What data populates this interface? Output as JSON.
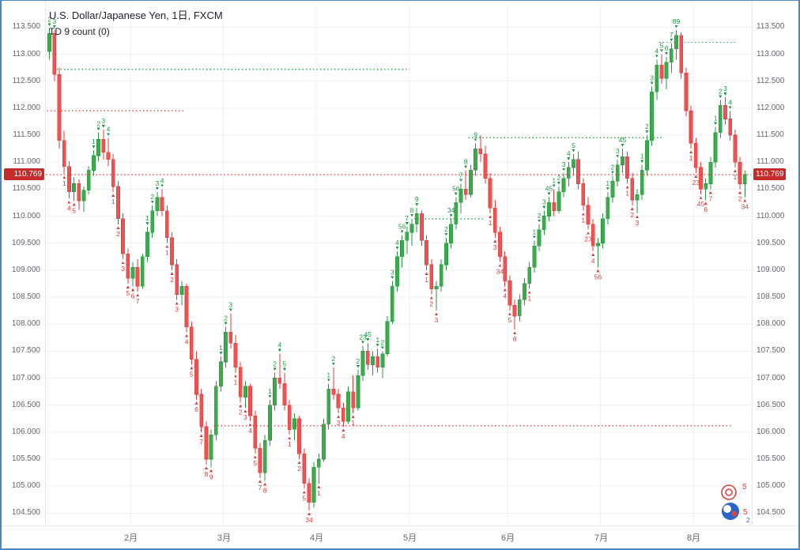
{
  "header": {
    "symbol_title": "U.S. Dollar/Japanese Yen, 1日, FXCM",
    "indicator_label": "TD 9 count (0)"
  },
  "price_line": {
    "value": 110.769,
    "label": "110.769"
  },
  "axes": {
    "price_min": 104.5,
    "price_max": 113.5,
    "price_step": 0.5,
    "decimals": 3
  },
  "colors": {
    "up": "#3cab4e",
    "up_dark": "#2c9440",
    "down": "#ee5253",
    "down_dark": "#df3d3e",
    "grid": "#edf0f6",
    "axis_text": "#62666f",
    "tdst_green": "#2eb24f",
    "tdst_red": "#e35555",
    "mark_up": "#1a9a40",
    "mark_down": "#df3a3a",
    "price_line": "#dd3636",
    "badge_bg": "#c42b2b"
  },
  "logo": {
    "marks": [
      "5",
      "5",
      "2"
    ]
  },
  "chart_data": {
    "type": "candlestick",
    "title": "U.S. Dollar/Japanese Yen, 1日, FXCM",
    "indicator": "TD 9 count (0)",
    "ylim": [
      104.3,
      113.9
    ],
    "price_axis": {
      "min": 104.5,
      "max": 113.5,
      "step": 0.5
    },
    "months": [
      {
        "label": "2月",
        "index": 17
      },
      {
        "label": "3月",
        "index": 36
      },
      {
        "label": "4月",
        "index": 55
      },
      {
        "label": "5月",
        "index": 74
      },
      {
        "label": "6月",
        "index": 94
      },
      {
        "label": "7月",
        "index": 113
      },
      {
        "label": "8月",
        "index": 132
      }
    ],
    "ohlc": [
      [
        113.05,
        113.48,
        112.9,
        113.38
      ],
      [
        113.38,
        113.45,
        112.5,
        112.62
      ],
      [
        112.62,
        112.75,
        111.25,
        111.4
      ],
      [
        111.4,
        111.58,
        110.78,
        110.92
      ],
      [
        110.92,
        111.02,
        110.32,
        110.45
      ],
      [
        110.45,
        110.72,
        110.28,
        110.6
      ],
      [
        110.6,
        110.68,
        110.12,
        110.28
      ],
      [
        110.28,
        110.55,
        110.08,
        110.48
      ],
      [
        110.48,
        110.92,
        110.4,
        110.85
      ],
      [
        110.85,
        111.22,
        110.75,
        111.12
      ],
      [
        111.12,
        111.55,
        111.02,
        111.42
      ],
      [
        111.42,
        111.6,
        111.05,
        111.18
      ],
      [
        111.18,
        111.45,
        110.92,
        111.05
      ],
      [
        111.05,
        111.15,
        110.45,
        110.55
      ],
      [
        110.55,
        110.65,
        109.85,
        109.95
      ],
      [
        109.95,
        110.05,
        109.2,
        109.3
      ],
      [
        109.3,
        109.4,
        108.75,
        108.85
      ],
      [
        108.85,
        109.15,
        108.7,
        109.05
      ],
      [
        109.05,
        109.2,
        108.6,
        108.7
      ],
      [
        108.7,
        109.3,
        108.65,
        109.25
      ],
      [
        109.25,
        109.8,
        109.15,
        109.7
      ],
      [
        109.7,
        110.2,
        109.6,
        110.1
      ],
      [
        110.1,
        110.45,
        110.0,
        110.35
      ],
      [
        110.35,
        110.5,
        110.0,
        110.1
      ],
      [
        110.1,
        110.2,
        109.5,
        109.6
      ],
      [
        109.6,
        109.7,
        109.0,
        109.1
      ],
      [
        109.1,
        109.2,
        108.45,
        108.55
      ],
      [
        108.55,
        108.8,
        108.35,
        108.7
      ],
      [
        108.7,
        108.75,
        107.85,
        107.95
      ],
      [
        107.95,
        108.05,
        107.25,
        107.35
      ],
      [
        107.35,
        107.5,
        106.6,
        106.7
      ],
      [
        106.7,
        106.8,
        106.0,
        106.1
      ],
      [
        106.1,
        106.2,
        105.4,
        105.5
      ],
      [
        105.5,
        106.05,
        105.35,
        105.95
      ],
      [
        105.95,
        106.95,
        105.85,
        106.85
      ],
      [
        106.85,
        107.4,
        106.75,
        107.3
      ],
      [
        107.3,
        107.95,
        107.2,
        107.85
      ],
      [
        107.85,
        108.2,
        107.55,
        107.65
      ],
      [
        107.65,
        107.8,
        107.1,
        107.2
      ],
      [
        107.2,
        107.3,
        106.55,
        106.65
      ],
      [
        106.65,
        106.95,
        106.45,
        106.85
      ],
      [
        106.85,
        106.9,
        106.2,
        106.3
      ],
      [
        106.3,
        106.4,
        105.6,
        105.7
      ],
      [
        105.7,
        105.8,
        105.15,
        105.25
      ],
      [
        105.25,
        105.95,
        105.1,
        105.85
      ],
      [
        105.85,
        106.6,
        105.75,
        106.5
      ],
      [
        106.5,
        107.1,
        106.4,
        107.0
      ],
      [
        107.0,
        107.45,
        106.8,
        106.9
      ],
      [
        106.9,
        107.1,
        106.4,
        106.5
      ],
      [
        106.5,
        106.6,
        105.95,
        106.05
      ],
      [
        106.05,
        106.35,
        105.85,
        106.25
      ],
      [
        106.25,
        106.3,
        105.5,
        105.6
      ],
      [
        105.6,
        105.7,
        104.95,
        105.05
      ],
      [
        105.05,
        105.15,
        104.55,
        104.7
      ],
      [
        104.7,
        105.45,
        104.6,
        105.35
      ],
      [
        105.35,
        105.6,
        105.05,
        105.5
      ],
      [
        105.5,
        106.25,
        105.45,
        106.15
      ],
      [
        106.15,
        106.9,
        106.05,
        106.8
      ],
      [
        106.8,
        107.2,
        106.6,
        106.7
      ],
      [
        106.7,
        106.8,
        106.35,
        106.45
      ],
      [
        106.45,
        106.55,
        106.1,
        106.2
      ],
      [
        106.2,
        106.85,
        106.15,
        106.75
      ],
      [
        106.75,
        107.05,
        106.35,
        106.45
      ],
      [
        106.45,
        107.15,
        106.4,
        107.05
      ],
      [
        107.05,
        107.6,
        106.95,
        107.5
      ],
      [
        107.5,
        107.65,
        107.15,
        107.25
      ],
      [
        107.25,
        107.5,
        107.05,
        107.4
      ],
      [
        107.4,
        107.55,
        107.1,
        107.2
      ],
      [
        107.2,
        107.5,
        107.0,
        107.45
      ],
      [
        107.45,
        108.15,
        107.4,
        108.05
      ],
      [
        108.05,
        108.8,
        108.0,
        108.7
      ],
      [
        108.7,
        109.35,
        108.6,
        109.25
      ],
      [
        109.25,
        109.65,
        109.05,
        109.55
      ],
      [
        109.55,
        109.8,
        109.3,
        109.7
      ],
      [
        109.7,
        109.95,
        109.45,
        109.85
      ],
      [
        109.85,
        110.15,
        109.7,
        110.05
      ],
      [
        110.05,
        110.1,
        109.45,
        109.55
      ],
      [
        109.55,
        109.65,
        109.0,
        109.1
      ],
      [
        109.1,
        109.2,
        108.55,
        108.65
      ],
      [
        108.65,
        108.8,
        108.25,
        108.7
      ],
      [
        108.7,
        109.2,
        108.6,
        109.1
      ],
      [
        109.1,
        109.6,
        109.0,
        109.5
      ],
      [
        109.5,
        109.95,
        109.4,
        109.85
      ],
      [
        109.85,
        110.35,
        109.75,
        110.25
      ],
      [
        110.25,
        110.6,
        110.05,
        110.5
      ],
      [
        110.5,
        110.85,
        110.3,
        110.4
      ],
      [
        110.4,
        110.95,
        110.35,
        110.85
      ],
      [
        110.85,
        111.35,
        110.75,
        111.25
      ],
      [
        111.25,
        111.5,
        111.0,
        111.15
      ],
      [
        111.15,
        111.3,
        110.6,
        110.7
      ],
      [
        110.7,
        110.8,
        110.05,
        110.15
      ],
      [
        110.15,
        110.3,
        109.6,
        109.7
      ],
      [
        109.7,
        109.8,
        109.15,
        109.25
      ],
      [
        109.25,
        109.35,
        108.7,
        108.8
      ],
      [
        108.8,
        108.9,
        108.25,
        108.35
      ],
      [
        108.35,
        108.45,
        107.9,
        108.15
      ],
      [
        108.15,
        108.55,
        108.05,
        108.45
      ],
      [
        108.45,
        108.85,
        108.35,
        108.75
      ],
      [
        108.75,
        109.15,
        108.65,
        109.05
      ],
      [
        109.05,
        109.55,
        108.95,
        109.45
      ],
      [
        109.45,
        109.85,
        109.35,
        109.75
      ],
      [
        109.75,
        110.1,
        109.65,
        110.0
      ],
      [
        110.0,
        110.35,
        109.9,
        110.25
      ],
      [
        110.25,
        110.5,
        110.0,
        110.1
      ],
      [
        110.1,
        110.55,
        110.05,
        110.45
      ],
      [
        110.45,
        110.8,
        110.35,
        110.7
      ],
      [
        110.7,
        111.0,
        110.55,
        110.9
      ],
      [
        110.9,
        111.15,
        110.75,
        111.05
      ],
      [
        111.05,
        111.2,
        110.5,
        110.6
      ],
      [
        110.6,
        110.7,
        110.1,
        110.2
      ],
      [
        110.2,
        110.35,
        109.75,
        109.85
      ],
      [
        109.85,
        109.95,
        109.35,
        109.45
      ],
      [
        109.45,
        109.6,
        109.05,
        109.5
      ],
      [
        109.5,
        110.05,
        109.4,
        109.95
      ],
      [
        109.95,
        110.45,
        109.85,
        110.35
      ],
      [
        110.35,
        110.75,
        110.25,
        110.65
      ],
      [
        110.65,
        111.05,
        110.55,
        110.95
      ],
      [
        110.95,
        111.25,
        110.8,
        111.1
      ],
      [
        111.1,
        111.2,
        110.6,
        110.7
      ],
      [
        110.7,
        110.8,
        110.2,
        110.3
      ],
      [
        110.3,
        110.5,
        110.05,
        110.4
      ],
      [
        110.4,
        110.95,
        110.3,
        110.85
      ],
      [
        110.85,
        111.5,
        110.75,
        111.4
      ],
      [
        111.4,
        112.4,
        111.3,
        112.3
      ],
      [
        112.3,
        112.9,
        112.15,
        112.8
      ],
      [
        112.8,
        113.0,
        112.45,
        112.55
      ],
      [
        112.55,
        112.95,
        112.35,
        112.85
      ],
      [
        112.85,
        113.2,
        112.65,
        113.1
      ],
      [
        113.1,
        113.45,
        112.9,
        113.35
      ],
      [
        113.35,
        113.4,
        112.55,
        112.65
      ],
      [
        112.65,
        112.75,
        111.85,
        111.95
      ],
      [
        111.95,
        112.05,
        111.25,
        111.35
      ],
      [
        111.35,
        111.45,
        110.8,
        110.9
      ],
      [
        110.9,
        111.0,
        110.4,
        110.5
      ],
      [
        110.5,
        110.7,
        110.3,
        110.6
      ],
      [
        110.6,
        111.1,
        110.5,
        111.0
      ],
      [
        111.0,
        111.65,
        110.9,
        111.55
      ],
      [
        111.55,
        112.15,
        111.45,
        112.05
      ],
      [
        112.05,
        112.2,
        111.7,
        111.8
      ],
      [
        111.8,
        111.95,
        111.4,
        111.5
      ],
      [
        111.5,
        111.6,
        110.9,
        111.0
      ],
      [
        111.0,
        111.1,
        110.5,
        110.6
      ],
      [
        110.6,
        110.85,
        110.35,
        110.77
      ]
    ],
    "td_marks": [
      [
        0,
        "a",
        "2"
      ],
      [
        1,
        "a",
        "3"
      ],
      [
        3,
        "b",
        "1"
      ],
      [
        4,
        "b",
        "4"
      ],
      [
        5,
        "b",
        "5"
      ],
      [
        9,
        "a",
        "1"
      ],
      [
        10,
        "a",
        "2"
      ],
      [
        11,
        "a",
        "3"
      ],
      [
        12,
        "a",
        "4"
      ],
      [
        13,
        "b",
        "1"
      ],
      [
        14,
        "b",
        "2"
      ],
      [
        15,
        "b",
        "3"
      ],
      [
        16,
        "b",
        "5"
      ],
      [
        17,
        "b",
        "6"
      ],
      [
        18,
        "b",
        "7"
      ],
      [
        20,
        "a",
        "1"
      ],
      [
        21,
        "a",
        "2"
      ],
      [
        22,
        "a",
        "3"
      ],
      [
        23,
        "a",
        "4"
      ],
      [
        24,
        "b",
        "1"
      ],
      [
        25,
        "b",
        "2"
      ],
      [
        26,
        "b",
        "3"
      ],
      [
        28,
        "b",
        "4"
      ],
      [
        29,
        "b",
        "5"
      ],
      [
        30,
        "b",
        "6"
      ],
      [
        31,
        "b",
        "7"
      ],
      [
        32,
        "b",
        "8"
      ],
      [
        33,
        "b",
        "9"
      ],
      [
        35,
        "a",
        "1"
      ],
      [
        36,
        "a",
        "2"
      ],
      [
        37,
        "a",
        "3"
      ],
      [
        38,
        "b",
        "1"
      ],
      [
        39,
        "b",
        "2"
      ],
      [
        40,
        "b",
        "3"
      ],
      [
        41,
        "b",
        "4"
      ],
      [
        42,
        "b",
        "5"
      ],
      [
        43,
        "b",
        "7"
      ],
      [
        44,
        "b",
        "8"
      ],
      [
        45,
        "a",
        "1"
      ],
      [
        46,
        "a",
        "2"
      ],
      [
        47,
        "a",
        "4"
      ],
      [
        48,
        "a",
        "5"
      ],
      [
        49,
        "b",
        "1"
      ],
      [
        51,
        "b",
        "2"
      ],
      [
        52,
        "b",
        "5"
      ],
      [
        53,
        "b",
        "34"
      ],
      [
        55,
        "b",
        "1"
      ],
      [
        57,
        "a",
        "1"
      ],
      [
        58,
        "a",
        "2"
      ],
      [
        59,
        "b",
        "3"
      ],
      [
        60,
        "b",
        "4"
      ],
      [
        62,
        "b",
        "1"
      ],
      [
        63,
        "a",
        "2"
      ],
      [
        64,
        "a",
        "23"
      ],
      [
        65,
        "a",
        "45"
      ],
      [
        67,
        "a",
        "1"
      ],
      [
        68,
        "a",
        "2"
      ],
      [
        70,
        "a",
        "3"
      ],
      [
        71,
        "a",
        "4"
      ],
      [
        72,
        "a",
        "56"
      ],
      [
        73,
        "a",
        "7"
      ],
      [
        74,
        "a",
        "8"
      ],
      [
        75,
        "a",
        "9"
      ],
      [
        77,
        "b",
        "1"
      ],
      [
        78,
        "b",
        "2"
      ],
      [
        79,
        "b",
        "3"
      ],
      [
        81,
        "a",
        "2"
      ],
      [
        82,
        "a",
        "34"
      ],
      [
        83,
        "a",
        "56"
      ],
      [
        84,
        "a",
        "7"
      ],
      [
        85,
        "a",
        "8"
      ],
      [
        87,
        "a",
        "9"
      ],
      [
        90,
        "b",
        "1"
      ],
      [
        91,
        "b",
        "3"
      ],
      [
        92,
        "b",
        "34"
      ],
      [
        93,
        "b",
        "4"
      ],
      [
        94,
        "b",
        "5"
      ],
      [
        95,
        "b",
        "6"
      ],
      [
        98,
        "b",
        "1"
      ],
      [
        99,
        "a",
        "1"
      ],
      [
        100,
        "a",
        "2"
      ],
      [
        101,
        "a",
        "3"
      ],
      [
        102,
        "a",
        "45"
      ],
      [
        103,
        "a",
        "1"
      ],
      [
        104,
        "a",
        "2"
      ],
      [
        105,
        "a",
        "3"
      ],
      [
        106,
        "a",
        "4"
      ],
      [
        107,
        "a",
        "5"
      ],
      [
        109,
        "b",
        "1"
      ],
      [
        110,
        "b",
        "23"
      ],
      [
        111,
        "b",
        "4"
      ],
      [
        112,
        "b",
        "56"
      ],
      [
        114,
        "a",
        "1"
      ],
      [
        115,
        "a",
        "2"
      ],
      [
        116,
        "a",
        "3"
      ],
      [
        117,
        "a",
        "45"
      ],
      [
        118,
        "b",
        "1"
      ],
      [
        119,
        "b",
        "2"
      ],
      [
        120,
        "b",
        "3"
      ],
      [
        121,
        "a",
        "1"
      ],
      [
        122,
        "a",
        "2"
      ],
      [
        123,
        "a",
        "3"
      ],
      [
        124,
        "a",
        "4"
      ],
      [
        125,
        "a",
        "5"
      ],
      [
        126,
        "a",
        "6"
      ],
      [
        127,
        "a",
        "7"
      ],
      [
        128,
        "a",
        "89"
      ],
      [
        131,
        "b",
        "1"
      ],
      [
        132,
        "b",
        "23"
      ],
      [
        133,
        "b",
        "45"
      ],
      [
        134,
        "b",
        "6"
      ],
      [
        135,
        "b",
        "7"
      ],
      [
        136,
        "a",
        "1"
      ],
      [
        137,
        "a",
        "2"
      ],
      [
        138,
        "a",
        "3"
      ],
      [
        139,
        "a",
        "4"
      ],
      [
        140,
        "b",
        "1"
      ],
      [
        141,
        "b",
        "2"
      ],
      [
        142,
        "b",
        "34"
      ]
    ],
    "tdst_lines": [
      {
        "price": 112.72,
        "from": 2,
        "to": 73,
        "color": "green"
      },
      {
        "price": 111.95,
        "from": 0,
        "to": 27,
        "color": "red"
      },
      {
        "price": 109.95,
        "from": 75,
        "to": 88,
        "color": "green"
      },
      {
        "price": 111.45,
        "from": 86,
        "to": 125,
        "color": "green"
      },
      {
        "price": 106.12,
        "from": 34,
        "to": 139,
        "color": "red"
      },
      {
        "price": 113.22,
        "from": 125,
        "to": 140,
        "color": "green"
      }
    ]
  }
}
